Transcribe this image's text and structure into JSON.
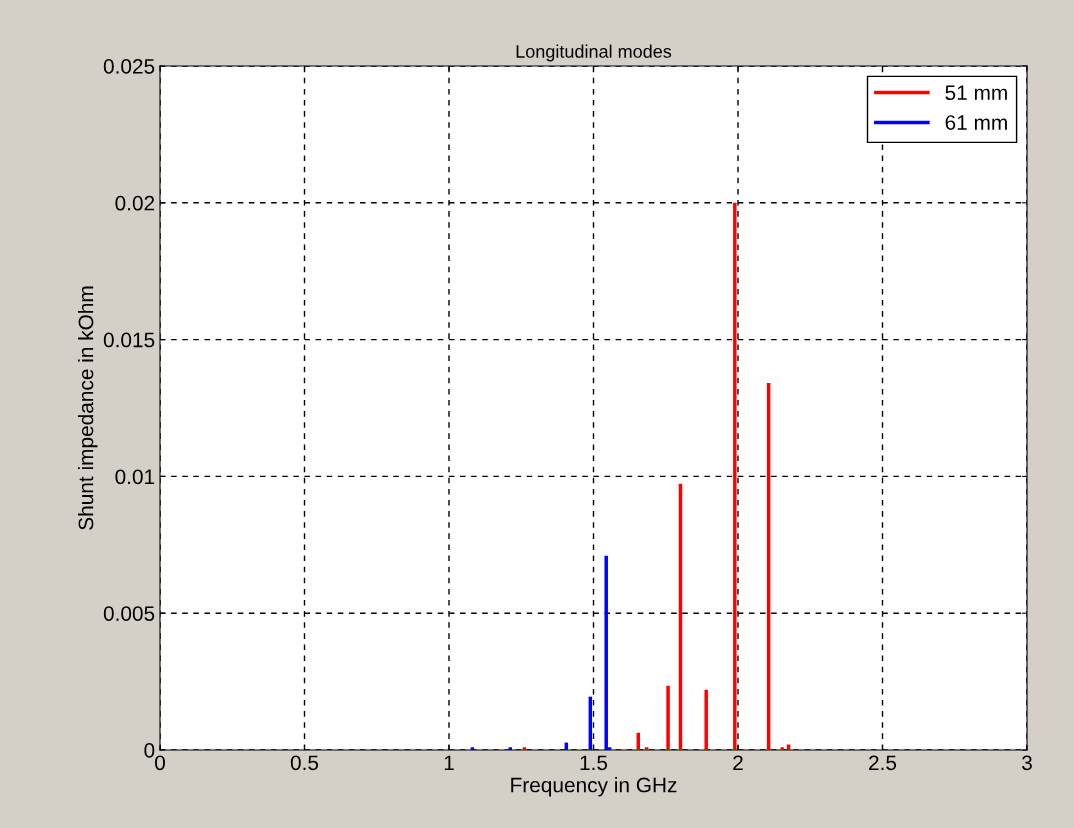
{
  "chart_data": {
    "type": "bar",
    "title": "Longitudinal modes",
    "xlabel": "Frequency in GHz",
    "ylabel": "Shunt impedance in kOhm",
    "xlim": [
      0,
      3
    ],
    "xticks": [
      0,
      0.5,
      1,
      1.5,
      2,
      2.5,
      3
    ],
    "ylim": [
      0,
      0.025
    ],
    "yticks": [
      0,
      0.005,
      0.01,
      0.015,
      0.02,
      0.025
    ],
    "grid": true,
    "legend": "top right",
    "line_style": "dashed",
    "series": [
      {
        "name": "51 mm",
        "color": "#ff0000",
        "x": [
          1.261,
          1.655,
          1.684,
          1.758,
          1.801,
          1.89,
          1.989,
          2.106,
          2.153,
          2.175
        ],
        "values": [
          0.0001,
          0.00063,
          0.0001,
          0.00235,
          0.00973,
          0.0022,
          0.02,
          0.01341,
          0.0001,
          0.0002
        ]
      },
      {
        "name": "61 mm",
        "color": "#0000ff",
        "x": [
          1.081,
          1.212,
          1.406,
          1.489,
          1.544,
          1.556
        ],
        "values": [
          0.0001,
          0.0001,
          0.00027,
          0.00195,
          0.0071,
          0.0001
        ]
      }
    ]
  }
}
